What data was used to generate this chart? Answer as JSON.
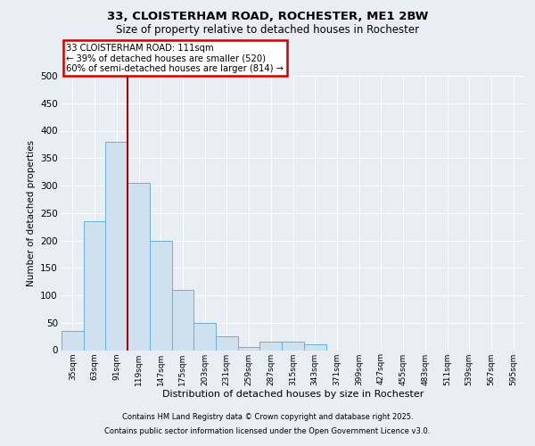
{
  "title_line1": "33, CLOISTERHAM ROAD, ROCHESTER, ME1 2BW",
  "title_line2": "Size of property relative to detached houses in Rochester",
  "xlabel": "Distribution of detached houses by size in Rochester",
  "ylabel": "Number of detached properties",
  "categories": [
    "35sqm",
    "63sqm",
    "91sqm",
    "119sqm",
    "147sqm",
    "175sqm",
    "203sqm",
    "231sqm",
    "259sqm",
    "287sqm",
    "315sqm",
    "343sqm",
    "371sqm",
    "399sqm",
    "427sqm",
    "455sqm",
    "483sqm",
    "511sqm",
    "539sqm",
    "567sqm",
    "595sqm"
  ],
  "values": [
    35,
    235,
    380,
    305,
    200,
    110,
    50,
    25,
    5,
    15,
    15,
    10,
    0,
    0,
    0,
    0,
    0,
    0,
    0,
    0,
    0
  ],
  "bar_color": "#cfe0ef",
  "bar_edge_color": "#6aaed6",
  "vline_color": "#aa0000",
  "vline_position": 2.5,
  "annotation_line1": "33 CLOISTERHAM ROAD: 111sqm",
  "annotation_line2": "← 39% of detached houses are smaller (520)",
  "annotation_line3": "60% of semi-detached houses are larger (814) →",
  "annotation_box_color": "#cc0000",
  "ylim": [
    0,
    500
  ],
  "yticks": [
    0,
    50,
    100,
    150,
    200,
    250,
    300,
    350,
    400,
    450,
    500
  ],
  "footer_line1": "Contains HM Land Registry data © Crown copyright and database right 2025.",
  "footer_line2": "Contains public sector information licensed under the Open Government Licence v3.0.",
  "background_color": "#e8eef4",
  "grid_color": "#ffffff"
}
